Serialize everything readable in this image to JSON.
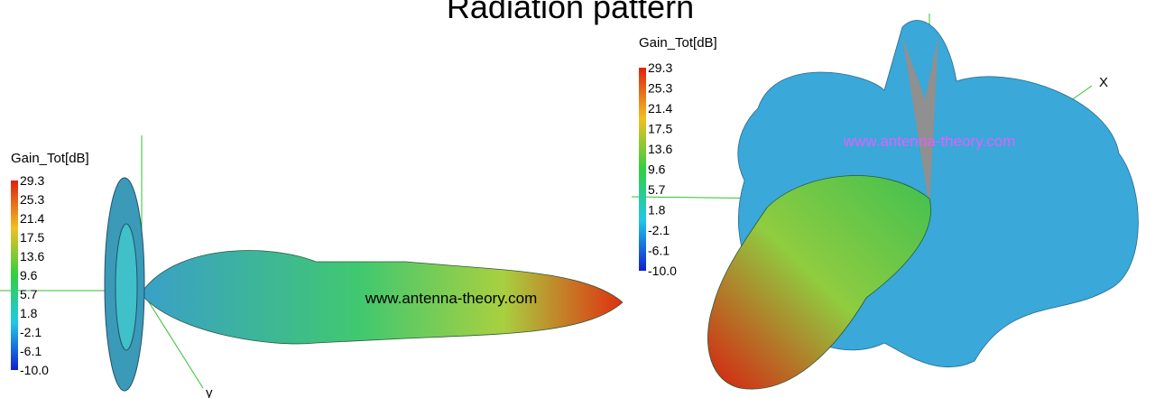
{
  "title": "Radiation pattern",
  "plots": [
    {
      "legend": {
        "title": "Gain_Tot[dB]",
        "labels": [
          "29.3",
          "25.3",
          "21.4",
          "17.5",
          "13.6",
          "9.6",
          "5.7",
          "1.8",
          "-2.1",
          "-6.1",
          "-10.0"
        ]
      },
      "watermark": "www.antenna-theory.com",
      "axis_label": "y"
    },
    {
      "legend": {
        "title": "Gain_Tot[dB]",
        "labels": [
          "29.3",
          "25.3",
          "21.4",
          "17.5",
          "13.6",
          "9.6",
          "5.7",
          "1.8",
          "-2.1",
          "-6.1",
          "-10.0"
        ]
      },
      "watermark": "www.antenna-theory.com",
      "axis_label": "X"
    }
  ]
}
